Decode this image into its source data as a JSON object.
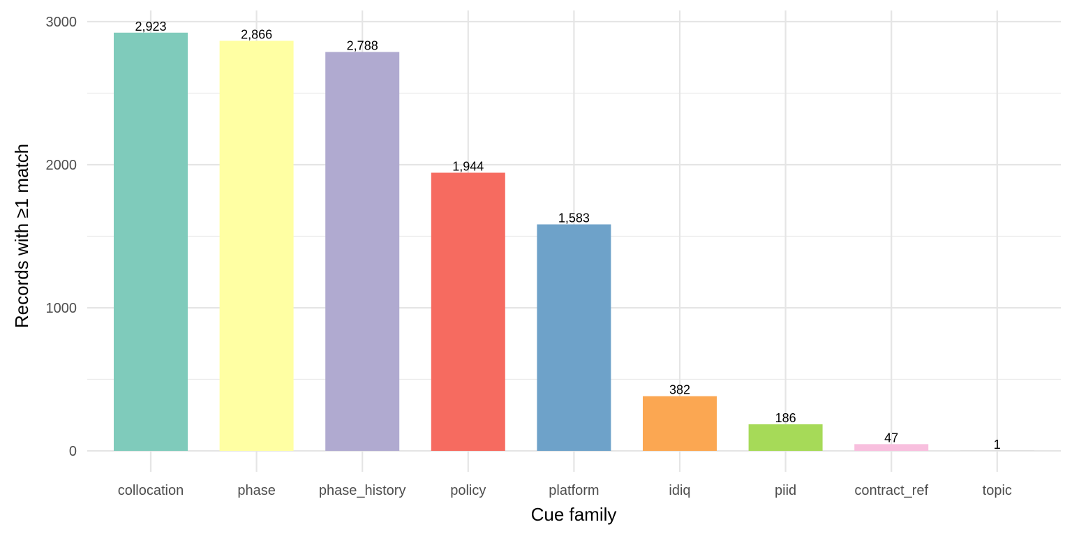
{
  "chart_data": {
    "type": "bar",
    "title": "",
    "xlabel": "Cue family",
    "ylabel": "Records with ≥1 match",
    "categories": [
      "collocation",
      "phase",
      "phase_history",
      "policy",
      "platform",
      "idiq",
      "piid",
      "contract_ref",
      "topic"
    ],
    "values": [
      2923,
      2866,
      2788,
      1944,
      1583,
      382,
      186,
      47,
      1
    ],
    "value_labels": [
      "2,923",
      "2,866",
      "2,788",
      "1,944",
      "1,583",
      "382",
      "186",
      "47",
      "1"
    ],
    "colors": [
      "#7fcbbb",
      "#ffffa3",
      "#b0aad0",
      "#f66b60",
      "#6ea2c9",
      "#fba752",
      "#a6da58",
      "#f8bfde",
      "#d9d9d9"
    ],
    "yticks": [
      0,
      1000,
      2000,
      3000
    ],
    "ytick_labels": [
      "0",
      "1000",
      "2000",
      "3000"
    ],
    "ylim": [
      0,
      3000
    ],
    "grid": true,
    "legend": "none"
  }
}
